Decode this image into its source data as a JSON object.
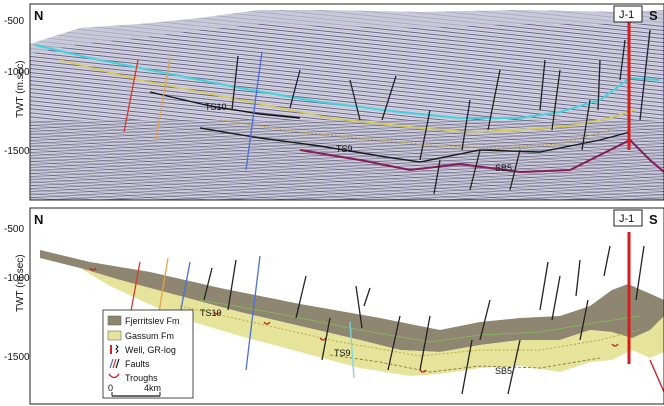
{
  "panels": {
    "top": {
      "left_label": "N",
      "right_label": "S",
      "well": "J-1",
      "y_axis_label": "TWT (m.sec)",
      "y_ticks": [
        "-500",
        "-1000",
        "-1500"
      ],
      "horizon_labels": [
        "TS10",
        "TS9",
        "SB5"
      ]
    },
    "bottom": {
      "left_label": "N",
      "right_label": "S",
      "well": "J-1",
      "y_axis_label": "TWT (m.sec)",
      "y_ticks": [
        "-500",
        "-1000",
        "-1500"
      ],
      "horizon_labels": [
        "TS10",
        "TS9",
        "SB5"
      ]
    }
  },
  "legend": {
    "items": [
      {
        "label": "Fjerritslev Fm",
        "color": "#8e8670"
      },
      {
        "label": "Gassum Fm",
        "color": "#e6e39a"
      },
      {
        "label": "Well, GR-log",
        "color": "#d22020"
      },
      {
        "label": "Faults",
        "color": "#5a6bc4"
      },
      {
        "label": "Troughs",
        "color": "#c41e1e"
      }
    ],
    "scale_start": "0",
    "scale_end": "4km"
  },
  "colors": {
    "fjerritslev": "#8e8670",
    "gassum": "#e6e39a",
    "well": "#d81b1b",
    "horizon_cyan": "#3fd3e0",
    "horizon_dark": "#222222",
    "horizon_magenta": "#8a1a5a"
  }
}
